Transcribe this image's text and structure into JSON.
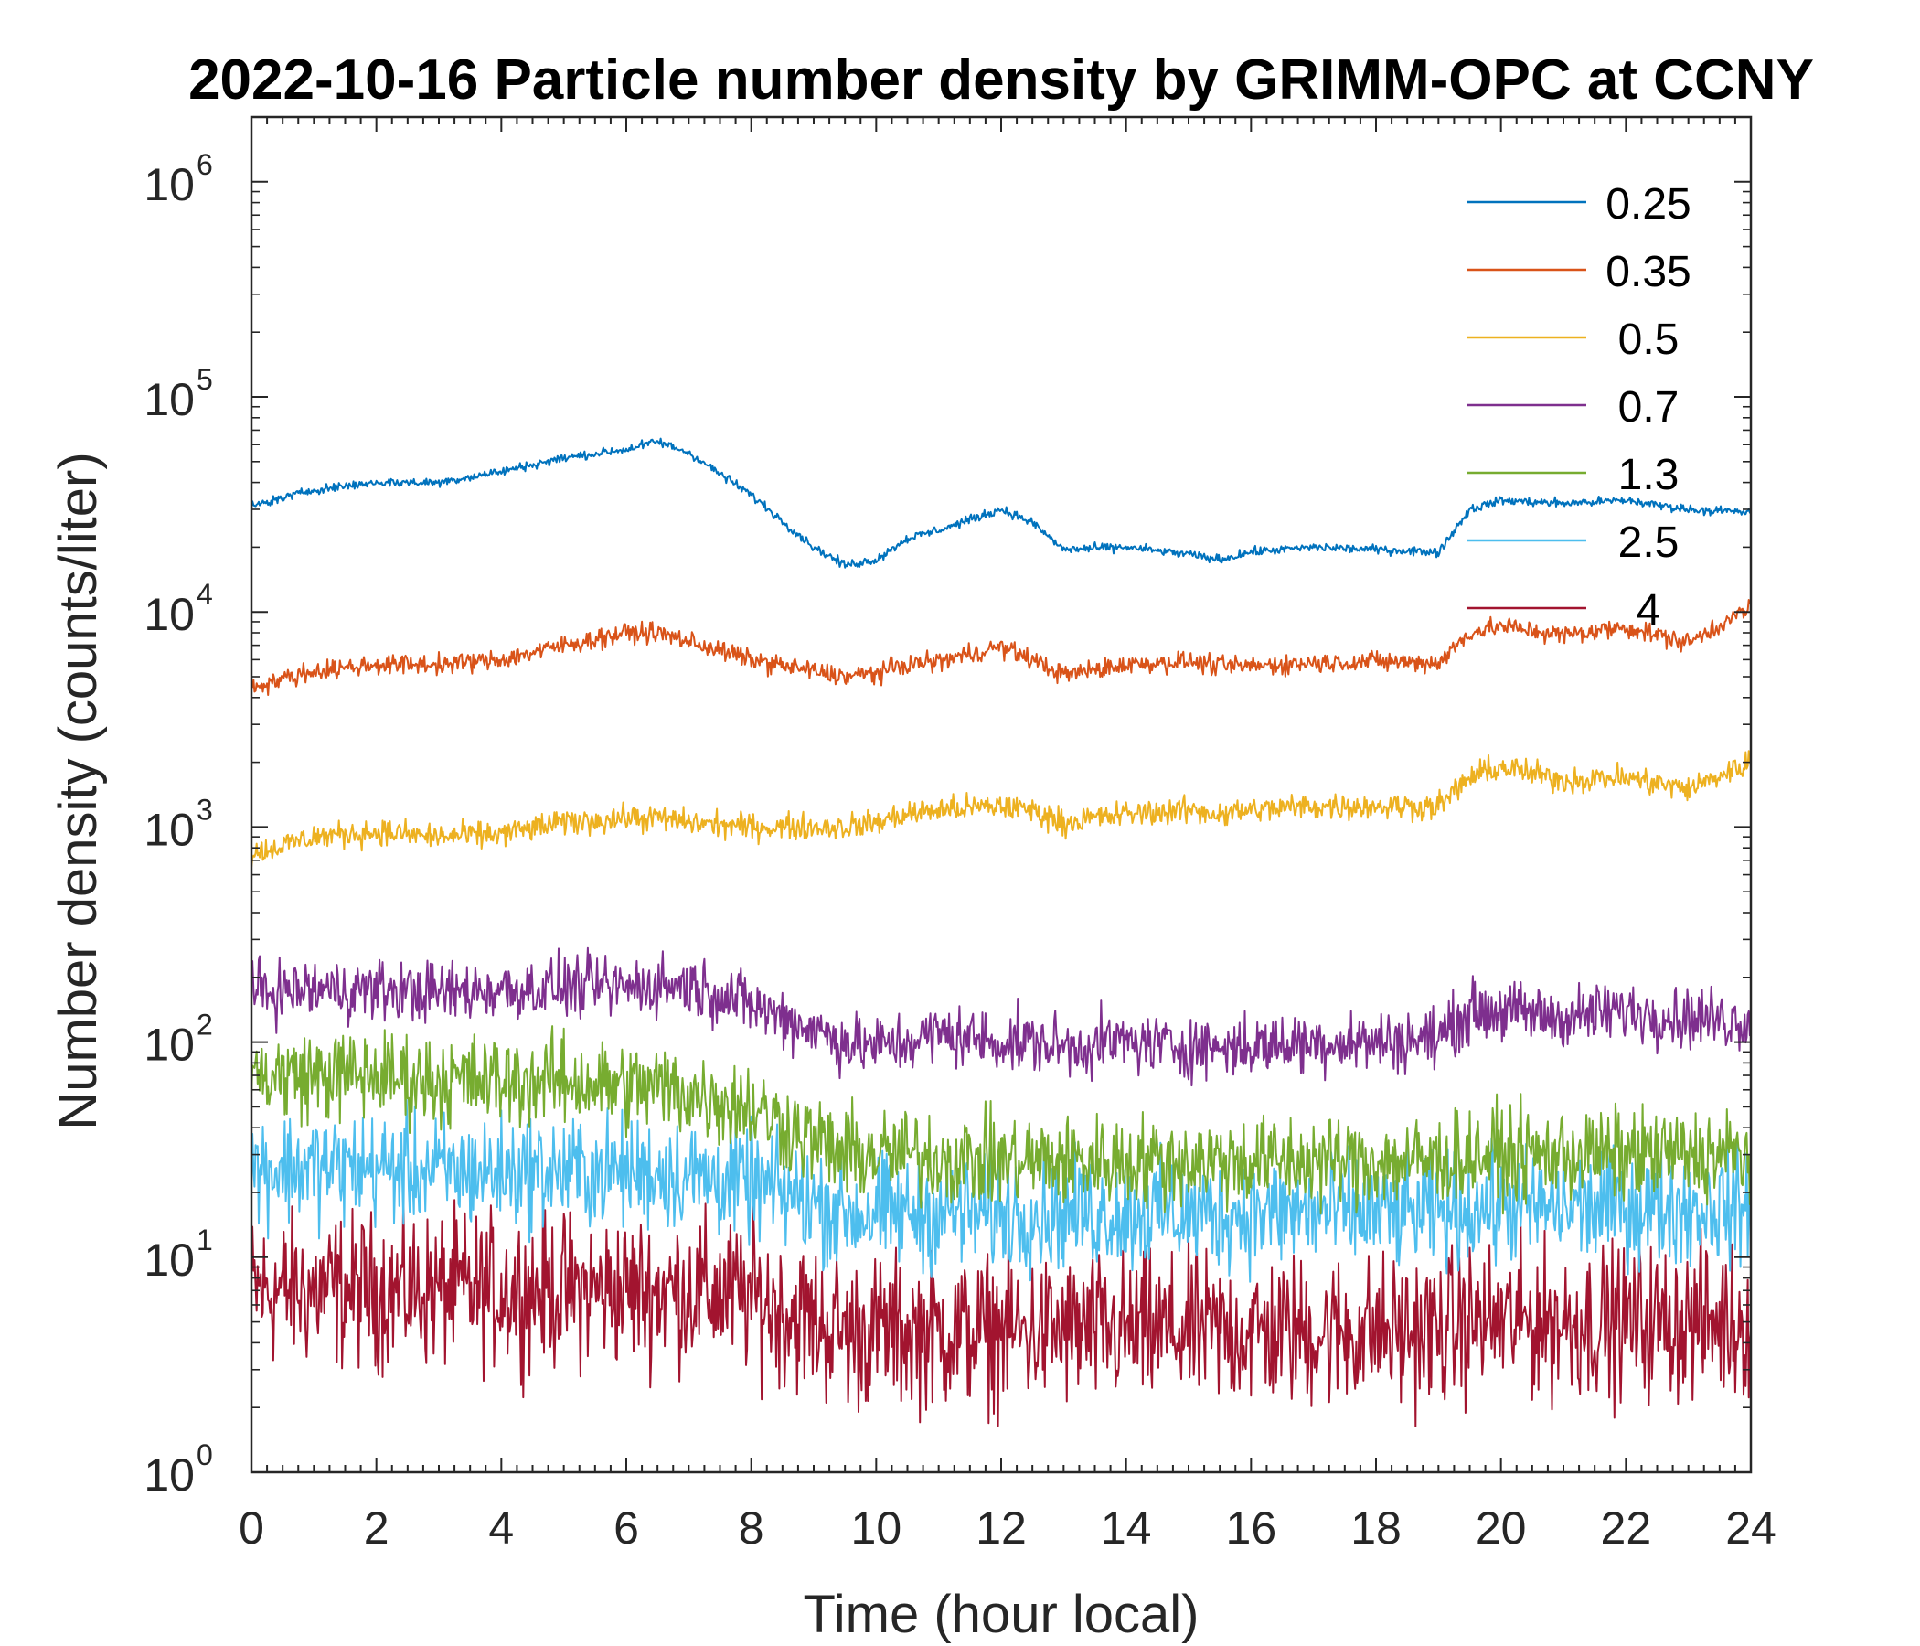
{
  "chart_data": {
    "type": "line",
    "title": "2022-10-16 Particle number density by GRIMM-OPC at CCNY",
    "xlabel": "Time (hour local)",
    "ylabel": "Number density (counts/liter)",
    "xlim": [
      0,
      24
    ],
    "ylim": [
      1,
      2000000
    ],
    "yscale": "log",
    "x_ticks": [
      0,
      2,
      4,
      6,
      8,
      10,
      12,
      14,
      16,
      18,
      20,
      22,
      24
    ],
    "x_tick_labels": [
      "0",
      "2",
      "4",
      "6",
      "8",
      "10",
      "12",
      "14",
      "16",
      "18",
      "20",
      "22",
      "24"
    ],
    "y_ticks": [
      1,
      10,
      100,
      1000,
      10000,
      100000,
      1000000
    ],
    "y_tick_base": "10",
    "y_tick_exponents": [
      "0",
      "1",
      "2",
      "3",
      "4",
      "5",
      "6"
    ],
    "legend_position": "top-right",
    "grid": false,
    "x": [
      0,
      1,
      2,
      3,
      4,
      5,
      6,
      6.5,
      7,
      8,
      9,
      9.5,
      10,
      10.5,
      11,
      12,
      12.5,
      13,
      14,
      15,
      15.5,
      16,
      17,
      18,
      19,
      19.5,
      20,
      21,
      22,
      23,
      24
    ],
    "series": [
      {
        "name": "0.25",
        "color": "#0072BD",
        "noise": 0.04,
        "values": [
          31000,
          37000,
          40000,
          40000,
          45000,
          52000,
          57000,
          62000,
          55000,
          35000,
          20000,
          16500,
          17500,
          22000,
          24000,
          30000,
          26000,
          19500,
          20000,
          18500,
          17500,
          19000,
          20000,
          19500,
          19000,
          30000,
          33000,
          32000,
          33000,
          30000,
          29000
        ]
      },
      {
        "name": "0.35",
        "color": "#D95319",
        "noise": 0.09,
        "values": [
          4500,
          5300,
          5700,
          5700,
          6000,
          7000,
          8000,
          8000,
          7300,
          6000,
          5300,
          5000,
          5200,
          5700,
          5900,
          6900,
          6000,
          5100,
          5700,
          5900,
          5600,
          5600,
          5800,
          5900,
          5800,
          8000,
          8600,
          7800,
          8500,
          7200,
          10500
        ]
      },
      {
        "name": "0.5",
        "color": "#EDB120",
        "noise": 0.12,
        "values": [
          750,
          900,
          950,
          900,
          930,
          1050,
          1100,
          1100,
          1050,
          1000,
          1000,
          1000,
          1050,
          1150,
          1200,
          1250,
          1200,
          1050,
          1150,
          1200,
          1150,
          1200,
          1250,
          1250,
          1250,
          1700,
          1900,
          1650,
          1700,
          1500,
          2000
        ]
      },
      {
        "name": "0.7",
        "color": "#7E2F8E",
        "noise": 0.28,
        "values": [
          170,
          175,
          175,
          170,
          175,
          180,
          180,
          185,
          185,
          150,
          115,
          100,
          95,
          100,
          110,
          100,
          100,
          95,
          100,
          95,
          95,
          95,
          100,
          100,
          105,
          140,
          140,
          130,
          140,
          130,
          125
        ]
      },
      {
        "name": "1.3",
        "color": "#77AC30",
        "noise": 0.42,
        "values": [
          70,
          70,
          70,
          66,
          66,
          66,
          62,
          62,
          58,
          50,
          35,
          30,
          30,
          30,
          29,
          28,
          28,
          28,
          28,
          28,
          28,
          28,
          28,
          28,
          28,
          30,
          30,
          30,
          30,
          30,
          30
        ]
      },
      {
        "name": "2.5",
        "color": "#4DBEEE",
        "noise": 0.52,
        "values": [
          26,
          26,
          26,
          25,
          25,
          25,
          25,
          25,
          24,
          22,
          18,
          16,
          16,
          16,
          16,
          16,
          16,
          16,
          16,
          16,
          16,
          16,
          16,
          16,
          16,
          17,
          17,
          17,
          17,
          17,
          17
        ]
      },
      {
        "name": "4",
        "color": "#A2142F",
        "noise": 0.7,
        "values": [
          7,
          7,
          7,
          7,
          7,
          7,
          7,
          7,
          7,
          6.5,
          5,
          4.5,
          4.5,
          4.5,
          4.5,
          4.5,
          4.5,
          4.5,
          4.5,
          4.5,
          4.5,
          4.5,
          4.5,
          4.5,
          4.5,
          5,
          5,
          5,
          5,
          5,
          5
        ]
      }
    ]
  }
}
